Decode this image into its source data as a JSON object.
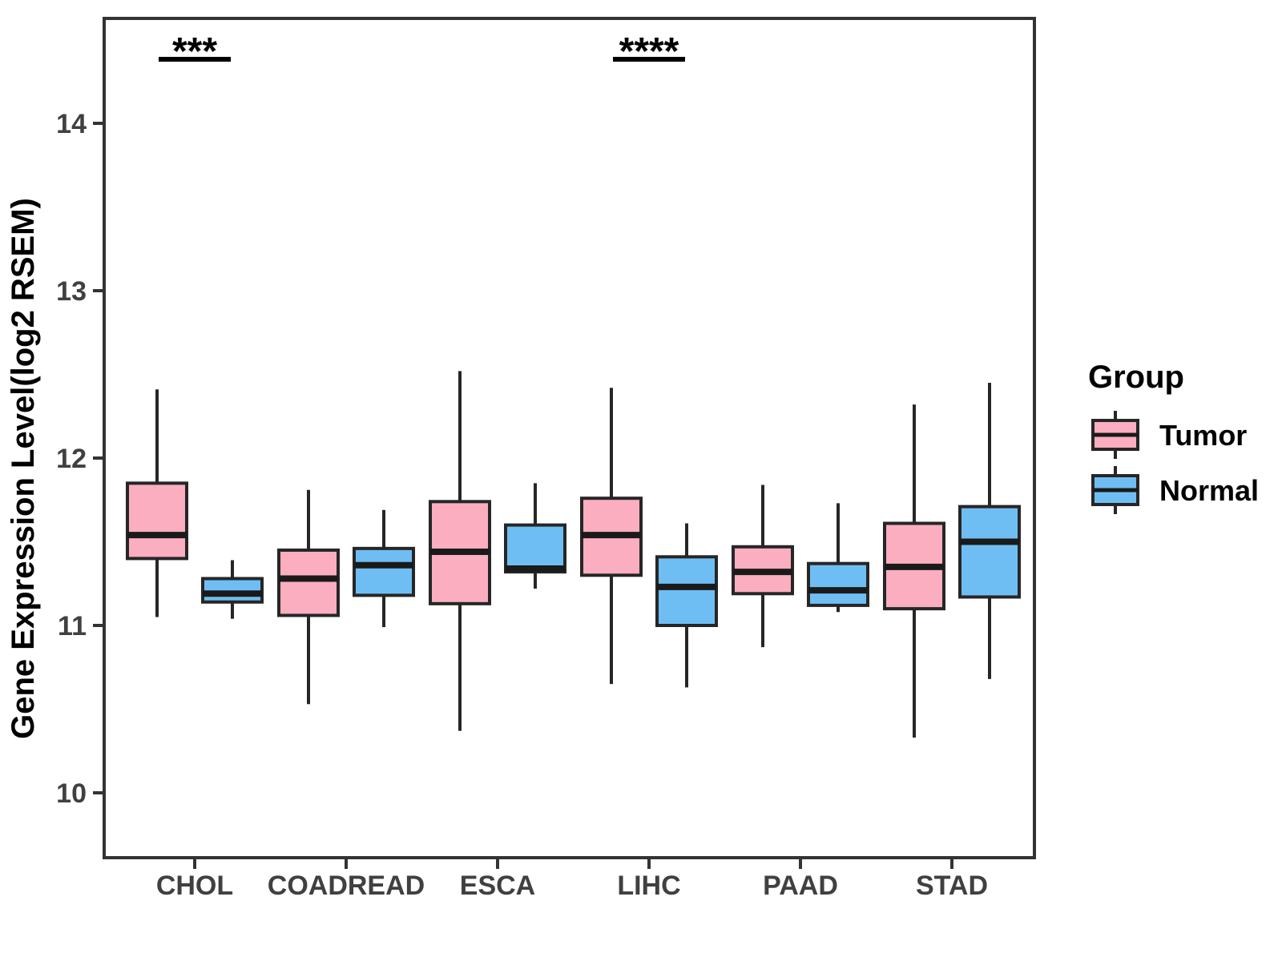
{
  "chart_data": {
    "type": "box",
    "title": "",
    "xlabel": "",
    "ylabel": "Gene Expression Level(log2 RSEM)",
    "categories": [
      "CHOL",
      "COADREAD",
      "ESCA",
      "LIHC",
      "PAAD",
      "STAD"
    ],
    "y_ticks": [
      10,
      11,
      12,
      13,
      14
    ],
    "ylim": [
      9.6,
      14.6
    ],
    "grid": false,
    "legend": {
      "title": "Group",
      "position": "right",
      "entries": [
        {
          "label": "Tumor",
          "color": "#FBAEC0"
        },
        {
          "label": "Normal",
          "color": "#6FBEF3"
        }
      ]
    },
    "series": [
      {
        "name": "Tumor",
        "color": "#FBAEC0",
        "boxes": [
          {
            "category": "CHOL",
            "low": 11.05,
            "q1": 11.4,
            "median": 11.54,
            "q3": 11.85,
            "high": 12.41
          },
          {
            "category": "COADREAD",
            "low": 10.53,
            "q1": 11.06,
            "median": 11.28,
            "q3": 11.45,
            "high": 11.81
          },
          {
            "category": "ESCA",
            "low": 10.37,
            "q1": 11.13,
            "median": 11.44,
            "q3": 11.74,
            "high": 12.52
          },
          {
            "category": "LIHC",
            "low": 10.65,
            "q1": 11.3,
            "median": 11.54,
            "q3": 11.76,
            "high": 12.42
          },
          {
            "category": "PAAD",
            "low": 10.87,
            "q1": 11.19,
            "median": 11.32,
            "q3": 11.47,
            "high": 11.84
          },
          {
            "category": "STAD",
            "low": 10.33,
            "q1": 11.1,
            "median": 11.35,
            "q3": 11.61,
            "high": 12.32
          }
        ]
      },
      {
        "name": "Normal",
        "color": "#6FBEF3",
        "boxes": [
          {
            "category": "CHOL",
            "low": 11.04,
            "q1": 11.14,
            "median": 11.19,
            "q3": 11.28,
            "high": 11.39
          },
          {
            "category": "COADREAD",
            "low": 10.99,
            "q1": 11.18,
            "median": 11.36,
            "q3": 11.46,
            "high": 11.69
          },
          {
            "category": "ESCA",
            "low": 11.22,
            "q1": 11.32,
            "median": 11.34,
            "q3": 11.6,
            "high": 11.85
          },
          {
            "category": "LIHC",
            "low": 10.63,
            "q1": 11.0,
            "median": 11.23,
            "q3": 11.41,
            "high": 11.61
          },
          {
            "category": "PAAD",
            "low": 11.08,
            "q1": 11.12,
            "median": 11.21,
            "q3": 11.37,
            "high": 11.73
          },
          {
            "category": "STAD",
            "low": 10.68,
            "q1": 11.17,
            "median": 11.5,
            "q3": 11.71,
            "high": 12.45
          }
        ]
      }
    ],
    "annotations": [
      {
        "category": "CHOL",
        "label": "***"
      },
      {
        "category": "LIHC",
        "label": "****"
      }
    ],
    "colors": {
      "tumor_fill": "#FBAEC0",
      "normal_fill": "#6FBEF3",
      "box_border": "#262626",
      "median_line": "#1A1A1A",
      "axis_frame": "#333333",
      "tick_text": "#404040",
      "label_text": "#000000",
      "background": "#FFFFFF"
    }
  }
}
